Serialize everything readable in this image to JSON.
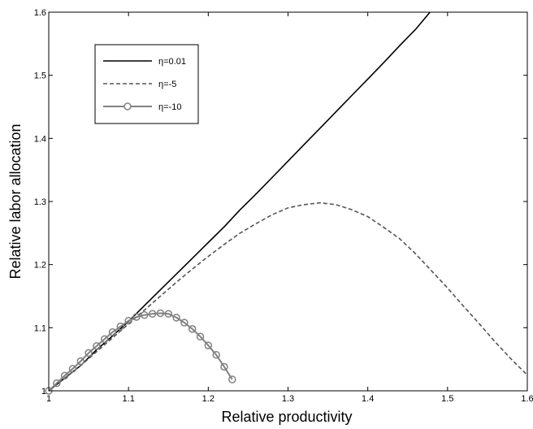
{
  "chart_data": {
    "type": "line",
    "title": "",
    "xlabel": "Relative productivity",
    "ylabel": "Relative labor allocation",
    "xlim": [
      1,
      1.6
    ],
    "ylim": [
      1,
      1.6
    ],
    "x_ticks": [
      "1",
      "1.1",
      "1.2",
      "1.3",
      "1.4",
      "1.5",
      "1.6"
    ],
    "y_ticks": [
      "1",
      "1.1",
      "1.2",
      "1.3",
      "1.4",
      "1.5",
      "1.6"
    ],
    "grid": false,
    "legend_position": "top-left",
    "series": [
      {
        "name": "η=0.01",
        "style": "solid",
        "color": "#000000",
        "marker": "none",
        "x": [
          1.0,
          1.02,
          1.04,
          1.06,
          1.08,
          1.1,
          1.12,
          1.14,
          1.16,
          1.18,
          1.2,
          1.22,
          1.24,
          1.26,
          1.28,
          1.3,
          1.32,
          1.34,
          1.36,
          1.38,
          1.4,
          1.42,
          1.44,
          1.46,
          1.478
        ],
        "y": [
          1.0,
          1.02,
          1.04,
          1.065,
          1.087,
          1.11,
          1.135,
          1.16,
          1.185,
          1.21,
          1.235,
          1.26,
          1.287,
          1.312,
          1.338,
          1.364,
          1.39,
          1.416,
          1.442,
          1.468,
          1.494,
          1.52,
          1.547,
          1.573,
          1.6
        ]
      },
      {
        "name": "η=-5",
        "style": "dashed",
        "color": "#555555",
        "marker": "none",
        "x": [
          1.0,
          1.02,
          1.04,
          1.06,
          1.08,
          1.1,
          1.12,
          1.14,
          1.16,
          1.18,
          1.2,
          1.22,
          1.24,
          1.26,
          1.28,
          1.3,
          1.32,
          1.34,
          1.36,
          1.38,
          1.4,
          1.42,
          1.44,
          1.46,
          1.48,
          1.5,
          1.52,
          1.54,
          1.56,
          1.58,
          1.6
        ],
        "y": [
          1.0,
          1.02,
          1.04,
          1.062,
          1.084,
          1.106,
          1.128,
          1.15,
          1.172,
          1.193,
          1.213,
          1.232,
          1.25,
          1.265,
          1.279,
          1.29,
          1.295,
          1.298,
          1.295,
          1.287,
          1.276,
          1.259,
          1.241,
          1.217,
          1.19,
          1.163,
          1.134,
          1.106,
          1.077,
          1.05,
          1.025
        ]
      },
      {
        "name": "η=-10",
        "style": "solid",
        "color": "#808080",
        "marker": "circle",
        "x": [
          1.0,
          1.01,
          1.02,
          1.03,
          1.04,
          1.05,
          1.06,
          1.07,
          1.08,
          1.09,
          1.1,
          1.11,
          1.12,
          1.13,
          1.14,
          1.15,
          1.16,
          1.17,
          1.18,
          1.19,
          1.2,
          1.21,
          1.22,
          1.23
        ],
        "y": [
          1.0,
          1.012,
          1.024,
          1.035,
          1.047,
          1.06,
          1.071,
          1.082,
          1.093,
          1.102,
          1.111,
          1.117,
          1.12,
          1.122,
          1.123,
          1.122,
          1.116,
          1.108,
          1.098,
          1.086,
          1.072,
          1.057,
          1.038,
          1.018
        ]
      }
    ]
  }
}
